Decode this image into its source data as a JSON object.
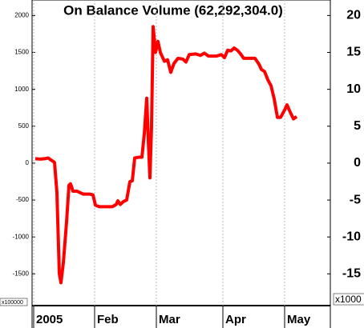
{
  "chart_data": {
    "type": "line",
    "title": "On Balance Volume (62,292,304.0)",
    "y_multiplier": "x100000",
    "y2_multiplier": "x1000",
    "xlim": [
      0,
      372
    ],
    "xticks": [
      {
        "value": 2,
        "label": "2005"
      },
      {
        "value": 78,
        "label": "Feb"
      },
      {
        "value": 155,
        "label": "Mar"
      },
      {
        "value": 238,
        "label": "Apr"
      },
      {
        "value": 315,
        "label": "May"
      }
    ],
    "ylim": [
      -1930,
      2210
    ],
    "yticks": [
      -1500,
      -1000,
      -500,
      0,
      500,
      1000,
      1500,
      2000
    ],
    "y2lim": [
      -19.3,
      22.1
    ],
    "y2ticks": [
      -15,
      -10,
      -5,
      0,
      5,
      10,
      15,
      20
    ],
    "grid": true,
    "series": [
      {
        "name": "On Balance Volume",
        "color": "#ff0000",
        "x": [
          4,
          10,
          16,
          20,
          24,
          28,
          31,
          34,
          36,
          39,
          43,
          46,
          48,
          51,
          56,
          60,
          64,
          72,
          76,
          79,
          84,
          100,
          105,
          107,
          110,
          114,
          118,
          122,
          125,
          128,
          133,
          137,
          140,
          143,
          145,
          147,
          149,
          151,
          154,
          157,
          160,
          165,
          169,
          173,
          177,
          182,
          188,
          192,
          196,
          204,
          210,
          215,
          220,
          230,
          236,
          240,
          244,
          248,
          252,
          256,
          260,
          264,
          278,
          283,
          286,
          290,
          294,
          298,
          302,
          306,
          310,
          315,
          318,
          322,
          326,
          330
        ],
        "values": [
          60,
          55,
          60,
          70,
          40,
          10,
          -400,
          -1500,
          -1620,
          -1350,
          -800,
          -300,
          -280,
          -380,
          -380,
          -400,
          -420,
          -420,
          -430,
          -570,
          -590,
          -590,
          -560,
          -510,
          -560,
          -520,
          -500,
          -250,
          -240,
          70,
          80,
          80,
          400,
          880,
          300,
          -200,
          500,
          1850,
          1500,
          1650,
          1500,
          1380,
          1400,
          1230,
          1350,
          1420,
          1410,
          1370,
          1470,
          1480,
          1460,
          1490,
          1450,
          1450,
          1470,
          1430,
          1530,
          1520,
          1560,
          1530,
          1480,
          1420,
          1420,
          1340,
          1270,
          1240,
          1130,
          1050,
          870,
          620,
          620,
          720,
          790,
          690,
          600,
          630
        ]
      }
    ]
  }
}
